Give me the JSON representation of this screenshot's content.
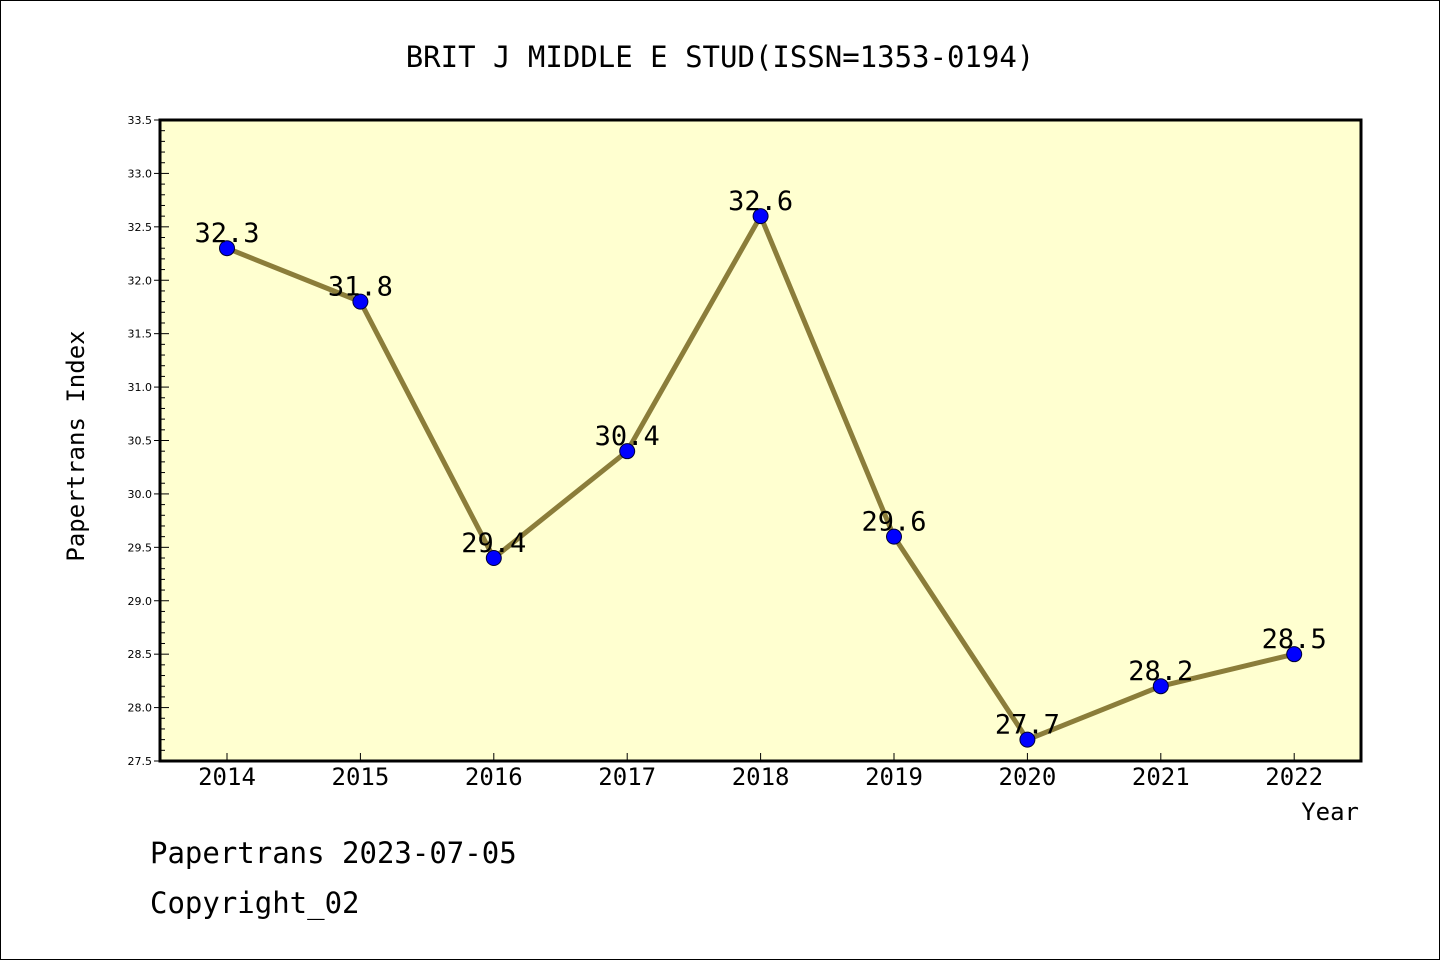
{
  "chart_data": {
    "type": "line",
    "title": "BRIT J MIDDLE E STUD(ISSN=1353-0194)",
    "xlabel": "Year",
    "ylabel": "Papertrans Index",
    "categories": [
      "2014",
      "2015",
      "2016",
      "2017",
      "2018",
      "2019",
      "2020",
      "2021",
      "2022"
    ],
    "series": [
      {
        "values": [
          32.3,
          31.8,
          29.4,
          30.4,
          32.6,
          29.6,
          27.7,
          28.2,
          28.5
        ]
      }
    ],
    "data_labels": [
      "32.3",
      "31.8",
      "29.4",
      "30.4",
      "32.6",
      "29.6",
      "27.7",
      "28.2",
      "28.5"
    ],
    "ylim": [
      27.5,
      33.5
    ],
    "yticks": [
      "27.5",
      "28.0",
      "28.5",
      "29.0",
      "29.5",
      "30.0",
      "30.5",
      "31.0",
      "31.5",
      "32.0",
      "32.5",
      "33.0",
      "33.5"
    ],
    "grid": false,
    "legend": "none",
    "colors": {
      "plot_background": "#ffffd0",
      "line": "#8b7d3a",
      "marker": "#0000ff"
    }
  },
  "footer": {
    "line1": "Papertrans 2023-07-05",
    "line2": "Copyright_02"
  }
}
